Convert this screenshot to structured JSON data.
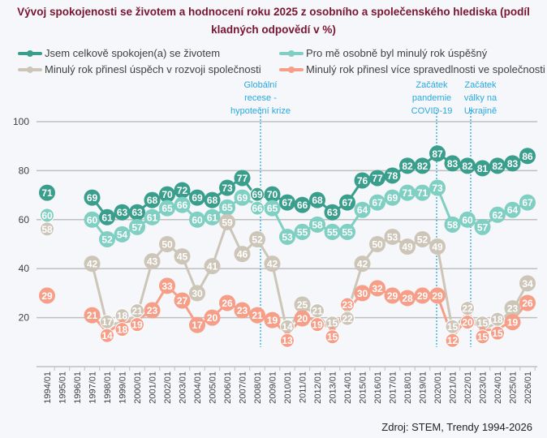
{
  "chart_data": {
    "type": "line",
    "title": "Vývoj spokojenosti se životem a hodnocení roku 2025 z osobního a společenského hlediska (podíl kladných odpovědí v %)",
    "categories": [
      "1994/01",
      "1995/01",
      "1996/01",
      "1997/01",
      "1998/01",
      "1999/01",
      "2000/01",
      "2001/01",
      "2002/01",
      "2003/01",
      "2004/01",
      "2005/01",
      "2006/01",
      "2007/01",
      "2008/01",
      "2009/01",
      "2010/01",
      "2011/01",
      "2012/01",
      "2013/01",
      "2014/01",
      "2015/01",
      "2016/01",
      "2017/01",
      "2018/01",
      "2019/01",
      "2020/01",
      "2021/01",
      "2022/01",
      "2023/01",
      "2024/01",
      "2025/01",
      "2026/01"
    ],
    "ylim": [
      0,
      100
    ],
    "yticks": [
      20,
      40,
      60,
      80,
      100
    ],
    "grid": true,
    "legend_position": "top",
    "series": [
      {
        "name": "Jsem celkově spokojen(a) se životem",
        "color": "#3a9e8c",
        "values": [
          71,
          null,
          null,
          69,
          61,
          63,
          63,
          68,
          70,
          72,
          69,
          68,
          73,
          77,
          69,
          70,
          67,
          66,
          68,
          63,
          67,
          76,
          77,
          78,
          82,
          82,
          87,
          83,
          82,
          81,
          82,
          83,
          86
        ]
      },
      {
        "name": "Pro mě osobně byl minulý rok úspěšný",
        "color": "#7fcfc3",
        "values": [
          60,
          null,
          null,
          60,
          52,
          54,
          57,
          61,
          65,
          66,
          60,
          61,
          65,
          69,
          66,
          65,
          53,
          55,
          58,
          55,
          55,
          64,
          67,
          69,
          71,
          71,
          73,
          58,
          60,
          57,
          62,
          64,
          67
        ]
      },
      {
        "name": "Minulý rok přinesl úspěch v rozvoji společnosti",
        "color": "#cdc6b8",
        "values": [
          58,
          null,
          null,
          42,
          17,
          18,
          21,
          43,
          50,
          45,
          30,
          41,
          59,
          46,
          52,
          42,
          14,
          25,
          21,
          15,
          22,
          42,
          50,
          53,
          49,
          52,
          49,
          15,
          22,
          15,
          18,
          23,
          34
        ]
      },
      {
        "name": "Minulý rok přinesl více spravedlnosti ve společnosti",
        "color": "#f79e88",
        "values": [
          29,
          null,
          null,
          21,
          14,
          18,
          19,
          23,
          33,
          27,
          17,
          20,
          26,
          23,
          21,
          19,
          13,
          20,
          19,
          15,
          23,
          30,
          32,
          29,
          28,
          29,
          29,
          12,
          20,
          15,
          15,
          19,
          26
        ]
      }
    ],
    "annotations": [
      {
        "text": [
          "Globální",
          "recese -",
          "hypoteční krize"
        ],
        "at": "2008/01",
        "color": "#29a8e0"
      },
      {
        "text": [
          "Začátek",
          "pandemie",
          "COVID-19"
        ],
        "at": "2020/01",
        "color": "#29a8e0"
      },
      {
        "text": [
          "Začátek",
          "války na",
          "Ukrajině"
        ],
        "at": "2022/01",
        "color": "#29a8e0"
      }
    ]
  },
  "source": "Zdroj: STEM, Trendy 1994-2026"
}
